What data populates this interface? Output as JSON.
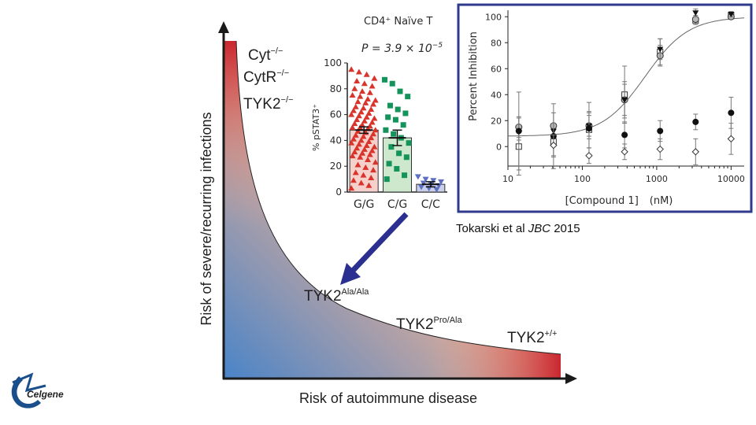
{
  "main_chart": {
    "xlabel": "Risk of autoimmune disease",
    "ylabel": "Risk of severe/recurring infections",
    "gradient": {
      "red": "#c8202a",
      "peach": "#e8b096",
      "blue": "#4a84c8"
    },
    "labels": [
      {
        "base": "Cyt",
        "sup": "−/−"
      },
      {
        "base": "CytR",
        "sup": "−/−"
      },
      {
        "base": "TYK2",
        "sup": "−/−"
      },
      {
        "base": "TYK2",
        "sup": "Ala/Ala"
      },
      {
        "base": "TYK2",
        "sup": "Pro/Ala"
      },
      {
        "base": "TYK2",
        "sup": "+/+"
      }
    ]
  },
  "citation": {
    "pre": "Tokarski et al ",
    "journal": "JBC",
    "year": " 2015"
  },
  "logo": {
    "text": "Celgene",
    "color": "#1a4f8c"
  },
  "chart_data": [
    {
      "type": "bar",
      "title": "CD4⁺   Naïve T",
      "pvalue": {
        "prefix": "P = 3.9 × 10",
        "exp": "−5"
      },
      "ylabel": "% pSTAT3⁺",
      "ylim": [
        0,
        100
      ],
      "yticks": [
        0,
        20,
        40,
        60,
        80,
        100
      ],
      "categories": [
        "G/G",
        "C/G",
        "C/C"
      ],
      "values": [
        48,
        42,
        6
      ],
      "sem": [
        2.5,
        6,
        2
      ],
      "bar_colors": [
        "#f6d1cc",
        "#cde8cc",
        "#c8cfea"
      ],
      "marker_colors": [
        "#d9342b",
        "#14935a",
        "#5c6fc0"
      ],
      "points": [
        [
          95,
          93,
          91,
          88,
          86,
          84,
          82,
          80,
          78,
          77,
          75,
          74,
          72,
          71,
          70,
          69,
          68,
          66,
          65,
          64,
          63,
          62,
          61,
          60,
          59,
          58,
          57,
          56,
          55,
          54,
          53,
          52,
          51,
          50,
          50,
          49,
          48,
          47,
          46,
          45,
          44,
          43,
          42,
          41,
          40,
          39,
          38,
          37,
          36,
          35,
          34,
          33,
          32,
          31,
          30,
          29,
          28,
          27,
          25,
          23,
          21,
          19,
          17,
          15,
          13,
          11,
          9,
          7,
          5,
          3
        ],
        [
          87,
          84,
          78,
          74,
          67,
          64,
          61,
          58,
          56,
          52,
          48,
          45,
          42,
          38,
          35,
          30,
          27,
          22,
          18,
          13,
          10
        ],
        [
          12,
          10,
          9,
          8,
          7,
          6,
          5,
          4,
          3,
          2
        ]
      ]
    },
    {
      "type": "scatter",
      "xlabel_base": "[Compound 1]",
      "xlabel_unit": "(nM)",
      "ylabel": "Percent Inhibition",
      "xscale": "log",
      "xlim": [
        10,
        15000
      ],
      "ylim": [
        -15,
        105
      ],
      "xticks": [
        10,
        100,
        1000,
        10000
      ],
      "yticks": [
        0,
        20,
        40,
        60,
        80,
        100
      ],
      "border_color": "#2e3a8c",
      "fit_curve": {
        "bottom": 8,
        "top": 100,
        "ic50": 700,
        "hill": 1.5
      },
      "series": [
        {
          "name": "open-square",
          "marker": "square-open",
          "x": [
            14,
            41,
            123,
            370,
            1111,
            3333,
            10000
          ],
          "y": [
            0,
            4,
            13,
            40,
            73,
            97,
            101
          ],
          "err": [
            22,
            12,
            14,
            22,
            10,
            3,
            2
          ]
        },
        {
          "name": "gray-circle",
          "marker": "circle-gray",
          "x": [
            14,
            41,
            123,
            370,
            1111,
            3333,
            10000
          ],
          "y": [
            15,
            16,
            16,
            36,
            70,
            98,
            100
          ],
          "err": [
            8,
            10,
            10,
            14,
            8,
            3,
            2
          ]
        },
        {
          "name": "filled-triangle",
          "marker": "triangle-filled",
          "x": [
            14,
            41,
            123,
            370,
            1111,
            3333,
            10000
          ],
          "y": [
            11,
            12,
            16,
            36,
            75,
            103,
            102
          ],
          "err": [
            6,
            6,
            8,
            12,
            8,
            3,
            2
          ]
        },
        {
          "name": "filled-circle",
          "marker": "circle-filled",
          "x": [
            14,
            41,
            123,
            370,
            1111,
            3333,
            10000
          ],
          "y": [
            12,
            8,
            14,
            9,
            12,
            19,
            26
          ],
          "err": [
            30,
            25,
            20,
            10,
            8,
            6,
            12
          ]
        },
        {
          "name": "open-diamond",
          "marker": "diamond-open",
          "x": [
            41,
            123,
            370,
            1111,
            3333,
            10000
          ],
          "y": [
            1,
            -7,
            -4,
            -2,
            -4,
            6
          ],
          "err": [
            8,
            6,
            6,
            8,
            10,
            12
          ]
        }
      ]
    }
  ]
}
